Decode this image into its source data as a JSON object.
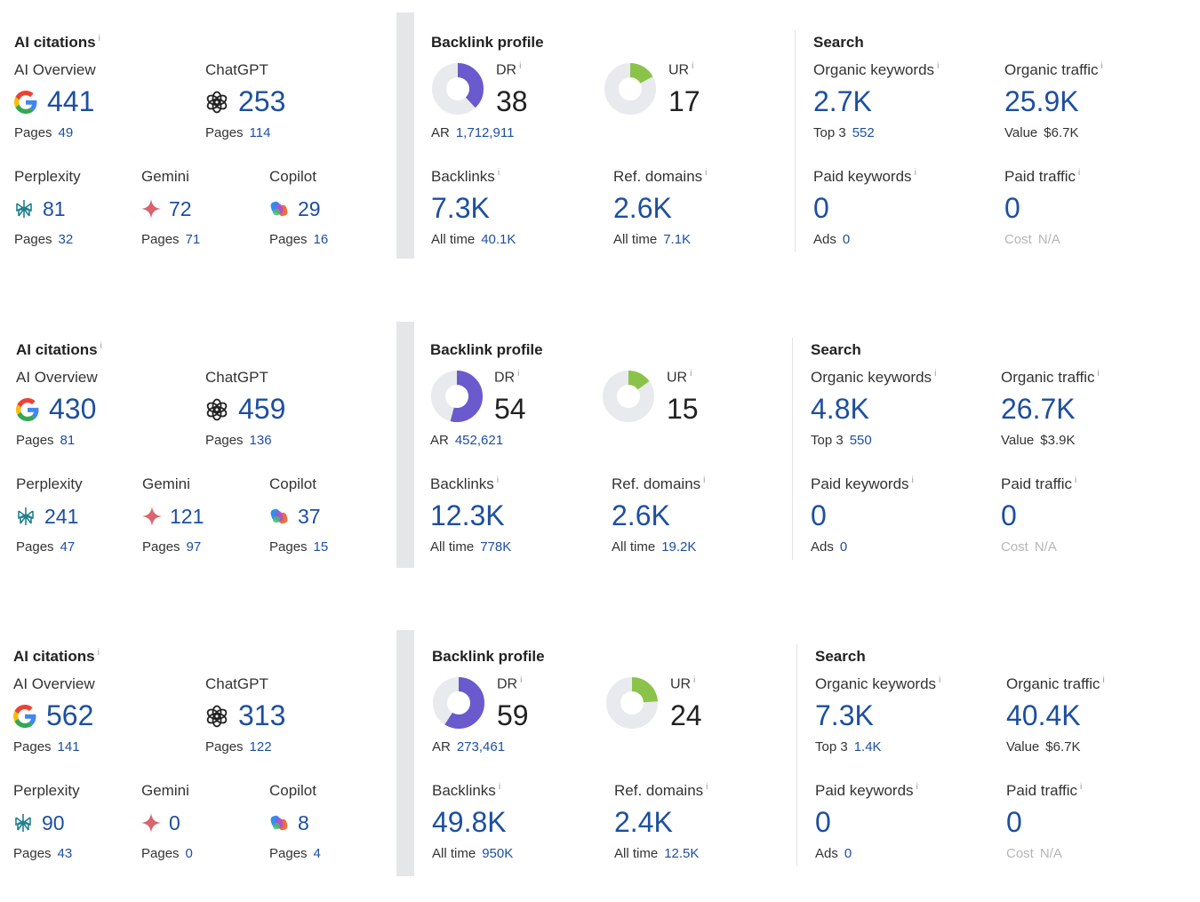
{
  "colors": {
    "link_blue": "#1d4fa0",
    "dr_purple": "#6a5acd",
    "ur_green": "#8bc34a",
    "ring_bg": "#e8eaed"
  },
  "icons": {
    "ai_overview": "google-g-icon",
    "chatgpt": "chatgpt-icon",
    "perplexity": "perplexity-icon",
    "gemini": "gemini-sparkle-icon",
    "copilot": "copilot-icon"
  },
  "labels": {
    "ai_citations": "AI citations",
    "ai_overview": "AI Overview",
    "chatgpt": "ChatGPT",
    "perplexity": "Perplexity",
    "gemini": "Gemini",
    "copilot": "Copilot",
    "pages": "Pages",
    "backlink_profile": "Backlink profile",
    "dr": "DR",
    "ur": "UR",
    "ar": "AR",
    "backlinks": "Backlinks",
    "ref_domains": "Ref. domains",
    "all_time": "All time",
    "search": "Search",
    "organic_keywords": "Organic keywords",
    "organic_traffic": "Organic traffic",
    "top3": "Top 3",
    "value": "Value",
    "paid_keywords": "Paid keywords",
    "paid_traffic": "Paid traffic",
    "ads": "Ads",
    "cost": "Cost",
    "info": "i"
  },
  "blocks": [
    {
      "ai": {
        "ai_overview": {
          "value": "441",
          "pages": "49"
        },
        "chatgpt": {
          "value": "253",
          "pages": "114"
        },
        "perplexity": {
          "value": "81",
          "pages": "32"
        },
        "gemini": {
          "value": "72",
          "pages": "71"
        },
        "copilot": {
          "value": "29",
          "pages": "16"
        }
      },
      "backlink": {
        "dr": "38",
        "dr_fraction": 0.38,
        "ur": "17",
        "ur_fraction": 0.17,
        "ar": "1,712,911",
        "backlinks": "7.3K",
        "backlinks_all_time": "40.1K",
        "ref_domains": "2.6K",
        "ref_domains_all_time": "7.1K"
      },
      "search": {
        "organic_keywords": "2.7K",
        "top3": "552",
        "organic_traffic": "25.9K",
        "value": "$6.7K",
        "paid_keywords": "0",
        "ads": "0",
        "paid_traffic": "0",
        "cost": "N/A"
      }
    },
    {
      "ai": {
        "ai_overview": {
          "value": "430",
          "pages": "81"
        },
        "chatgpt": {
          "value": "459",
          "pages": "136"
        },
        "perplexity": {
          "value": "241",
          "pages": "47"
        },
        "gemini": {
          "value": "121",
          "pages": "97"
        },
        "copilot": {
          "value": "37",
          "pages": "15"
        }
      },
      "backlink": {
        "dr": "54",
        "dr_fraction": 0.54,
        "ur": "15",
        "ur_fraction": 0.15,
        "ar": "452,621",
        "backlinks": "12.3K",
        "backlinks_all_time": "778K",
        "ref_domains": "2.6K",
        "ref_domains_all_time": "19.2K"
      },
      "search": {
        "organic_keywords": "4.8K",
        "top3": "550",
        "organic_traffic": "26.7K",
        "value": "$3.9K",
        "paid_keywords": "0",
        "ads": "0",
        "paid_traffic": "0",
        "cost": "N/A"
      }
    },
    {
      "ai": {
        "ai_overview": {
          "value": "562",
          "pages": "141"
        },
        "chatgpt": {
          "value": "313",
          "pages": "122"
        },
        "perplexity": {
          "value": "90",
          "pages": "43"
        },
        "gemini": {
          "value": "0",
          "pages": "0"
        },
        "copilot": {
          "value": "8",
          "pages": "4"
        }
      },
      "backlink": {
        "dr": "59",
        "dr_fraction": 0.59,
        "ur": "24",
        "ur_fraction": 0.24,
        "ar": "273,461",
        "backlinks": "49.8K",
        "backlinks_all_time": "950K",
        "ref_domains": "2.4K",
        "ref_domains_all_time": "12.5K"
      },
      "search": {
        "organic_keywords": "7.3K",
        "top3": "1.4K",
        "organic_traffic": "40.4K",
        "value": "$6.7K",
        "paid_keywords": "0",
        "ads": "0",
        "paid_traffic": "0",
        "cost": "N/A"
      }
    }
  ]
}
